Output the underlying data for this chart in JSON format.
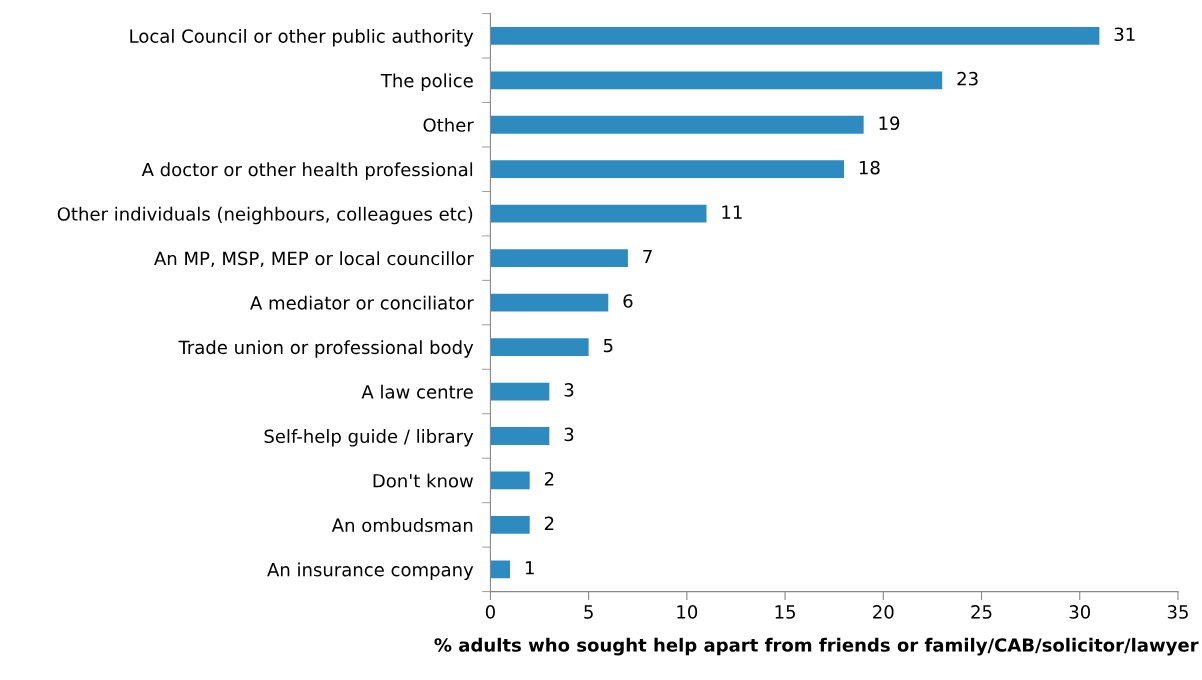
{
  "chart_data": {
    "type": "bar",
    "orientation": "horizontal",
    "xlabel": "% adults who sought help apart from friends or family/CAB/solicitor/lawyer",
    "categories": [
      "Local Council or other public authority",
      "The police",
      "Other",
      "A doctor or other health professional",
      "Other individuals (neighbours, colleagues etc)",
      "An MP, MSP, MEP or local councillor",
      "A mediator or conciliator",
      "Trade union or professional body",
      "A law centre",
      "Self-help guide / library",
      "Don't know",
      "An ombudsman",
      "An insurance company"
    ],
    "values": [
      31,
      23,
      19,
      18,
      11,
      7,
      6,
      5,
      3,
      3,
      2,
      2,
      1
    ],
    "color": "#2e8bc0",
    "xlim": [
      0,
      35
    ],
    "xticks": [
      0,
      5,
      10,
      15,
      20,
      25,
      30,
      35
    ],
    "data_labels": true,
    "grid": false,
    "legend": false
  }
}
